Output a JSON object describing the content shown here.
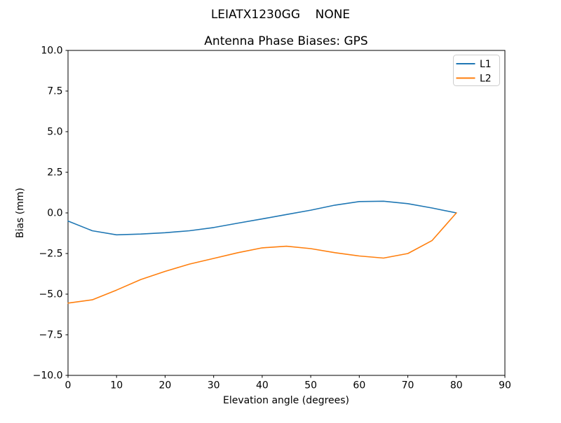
{
  "chart_data": {
    "type": "line",
    "suptitle": "LEIATX1230GG    NONE",
    "title": "Antenna Phase Biases: GPS",
    "xlabel": "Elevation angle (degrees)",
    "ylabel": "Bias (mm)",
    "xlim": [
      0,
      90
    ],
    "ylim": [
      -10,
      10
    ],
    "xticks": [
      0,
      10,
      20,
      30,
      40,
      50,
      60,
      70,
      80,
      90
    ],
    "xtick_labels": [
      "0",
      "10",
      "20",
      "30",
      "40",
      "50",
      "60",
      "70",
      "80",
      "90"
    ],
    "yticks": [
      -10,
      -7.5,
      -5,
      -2.5,
      0,
      2.5,
      5,
      7.5,
      10
    ],
    "ytick_labels": [
      "−10.0",
      "−7.5",
      "−5.0",
      "−2.5",
      "0.0",
      "2.5",
      "5.0",
      "7.5",
      "10.0"
    ],
    "grid": false,
    "background": "#ffffff",
    "axis_color": "#000000",
    "line_width": 1.6,
    "legend": {
      "position": "upper right"
    },
    "x": [
      0,
      5,
      10,
      15,
      20,
      25,
      30,
      35,
      40,
      45,
      50,
      55,
      60,
      65,
      70,
      75,
      80
    ],
    "series": [
      {
        "name": "L1",
        "color": "#1f77b4",
        "values": [
          -0.5,
          -1.1,
          -1.35,
          -1.3,
          -1.22,
          -1.1,
          -0.9,
          -0.63,
          -0.37,
          -0.1,
          0.17,
          0.48,
          0.7,
          0.72,
          0.57,
          0.3,
          0.0
        ]
      },
      {
        "name": "L2",
        "color": "#ff7f0e",
        "values": [
          -5.55,
          -5.35,
          -4.75,
          -4.1,
          -3.6,
          -3.15,
          -2.8,
          -2.45,
          -2.15,
          -2.05,
          -2.2,
          -2.45,
          -2.65,
          -2.78,
          -2.5,
          -1.7,
          0.0
        ]
      }
    ]
  }
}
